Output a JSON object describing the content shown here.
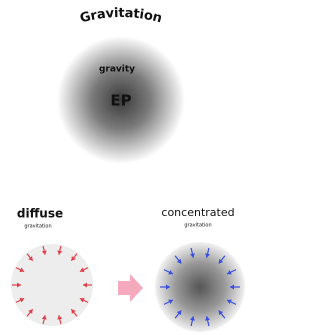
{
  "header": {
    "title": "Gravitation"
  },
  "center": {
    "label": "gravity",
    "sublabel": "EP"
  },
  "left": {
    "title": "diffuse",
    "subtitle": "gravitation"
  },
  "right": {
    "title": "concentrated",
    "subtitle": "gravitation"
  }
}
